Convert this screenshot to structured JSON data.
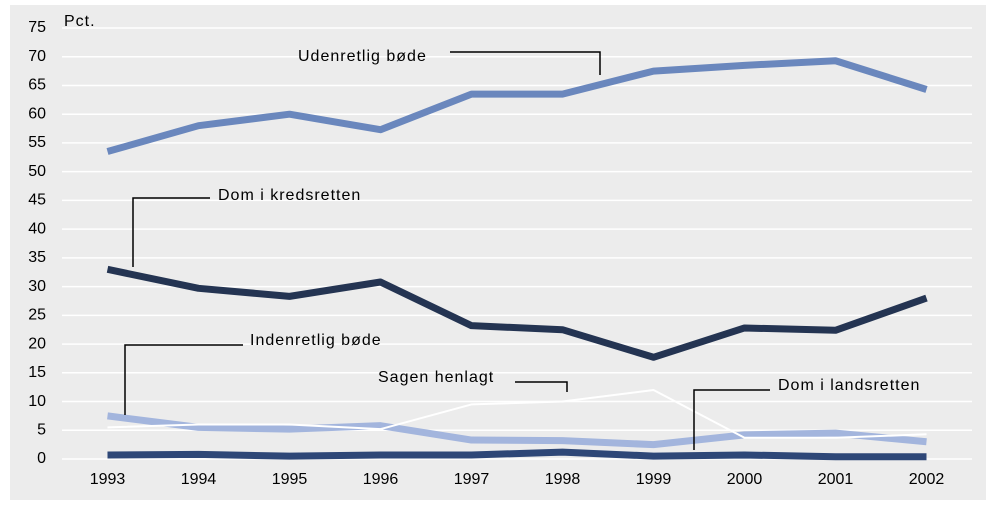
{
  "chart_data": {
    "type": "line",
    "y_label": "Pct.",
    "categories": [
      "1993",
      "1994",
      "1995",
      "1996",
      "1997",
      "1998",
      "1999",
      "2000",
      "2001",
      "2002"
    ],
    "series": [
      {
        "name": "Udenretlig bøde",
        "color": "#6a87bd",
        "width": 7,
        "values": [
          53.5,
          58,
          60,
          57.3,
          63.5,
          63.5,
          67.5,
          68.5,
          69.3,
          64.3
        ]
      },
      {
        "name": "Dom i kredsretten",
        "color": "#243452",
        "width": 7,
        "values": [
          33,
          29.7,
          28.3,
          30.8,
          23.2,
          22.5,
          17.7,
          22.8,
          22.4,
          28
        ]
      },
      {
        "name": "Indenretlig bøde",
        "color": "#a3b5dd",
        "width": 7,
        "values": [
          7.5,
          5.5,
          5.2,
          5.8,
          3.3,
          3.2,
          2.5,
          4.2,
          4.5,
          3
        ]
      },
      {
        "name": "Sagen henlagt",
        "color": "#ffffff",
        "width": 2,
        "values": [
          5.5,
          6,
          6,
          5.2,
          9.5,
          10,
          12,
          3.7,
          3.7,
          4.3
        ]
      },
      {
        "name": "Dom i landsretten",
        "color": "#2e4777",
        "width": 7,
        "values": [
          0.7,
          0.8,
          0.5,
          0.7,
          0.7,
          1.2,
          0.5,
          0.7,
          0.4,
          0.4
        ]
      }
    ],
    "ylim": [
      0,
      75
    ],
    "yticks": [
      0,
      5,
      10,
      15,
      20,
      25,
      30,
      35,
      40,
      45,
      50,
      55,
      60,
      65,
      70,
      75
    ],
    "grid": true
  }
}
